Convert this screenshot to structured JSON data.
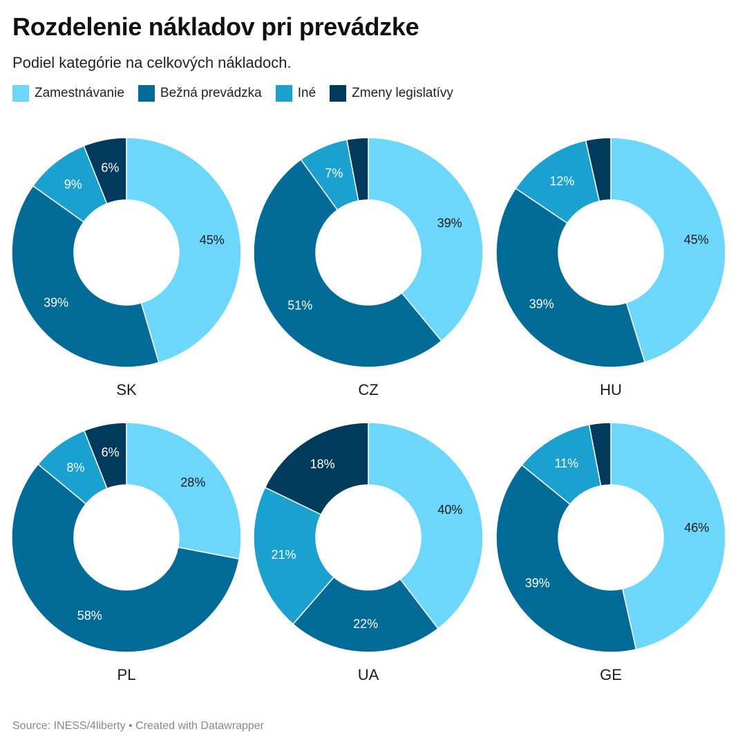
{
  "header": {
    "title": "Rozdelenie nákladov pri prevádzke",
    "subtitle": "Podiel kategórie na celkových nákladoch."
  },
  "legend": [
    {
      "name": "Zamestnávanie",
      "color": "#6dd6fb"
    },
    {
      "name": "Bežná prevádzka",
      "color": "#006b96"
    },
    {
      "name": "Iné",
      "color": "#1aa1cf"
    },
    {
      "name": "Zmeny legislatívy",
      "color": "#003a5c"
    }
  ],
  "footer": {
    "source": "Source: INESS/4liberty • Created with Datawrapper"
  },
  "chart_data": [
    {
      "type": "pie",
      "title": "SK",
      "categories": [
        "Zamestnávanie",
        "Bežná prevádzka",
        "Iné",
        "Zmeny legislatívy"
      ],
      "values": [
        45,
        39,
        9,
        6
      ],
      "labels": [
        "45%",
        "39%",
        "9%",
        "6%"
      ]
    },
    {
      "type": "pie",
      "title": "CZ",
      "categories": [
        "Zamestnávanie",
        "Bežná prevádzka",
        "Iné",
        "Zmeny legislatívy"
      ],
      "values": [
        39,
        51,
        7,
        3
      ],
      "labels": [
        "39%",
        "51%",
        "7%",
        ""
      ]
    },
    {
      "type": "pie",
      "title": "HU",
      "categories": [
        "Zamestnávanie",
        "Bežná prevádzka",
        "Iné",
        "Zmeny legislatívy"
      ],
      "values": [
        45,
        39,
        12,
        3.5
      ],
      "labels": [
        "45%",
        "39%",
        "12%",
        ""
      ]
    },
    {
      "type": "pie",
      "title": "PL",
      "categories": [
        "Zamestnávanie",
        "Bežná prevádzka",
        "Iné",
        "Zmeny legislatívy"
      ],
      "values": [
        28,
        58,
        8,
        6
      ],
      "labels": [
        "28%",
        "58%",
        "8%",
        "6%"
      ]
    },
    {
      "type": "pie",
      "title": "UA",
      "categories": [
        "Zamestnávanie",
        "Bežná prevádzka",
        "Iné",
        "Zmeny legislatívy"
      ],
      "values": [
        40,
        22,
        21,
        18
      ],
      "labels": [
        "40%",
        "22%",
        "21%",
        "18%"
      ]
    },
    {
      "type": "pie",
      "title": "GE",
      "categories": [
        "Zamestnávanie",
        "Bežná prevádzka",
        "Iné",
        "Zmeny legislatívy"
      ],
      "values": [
        46,
        39,
        11,
        3
      ],
      "labels": [
        "46%",
        "39%",
        "11%",
        ""
      ]
    }
  ]
}
